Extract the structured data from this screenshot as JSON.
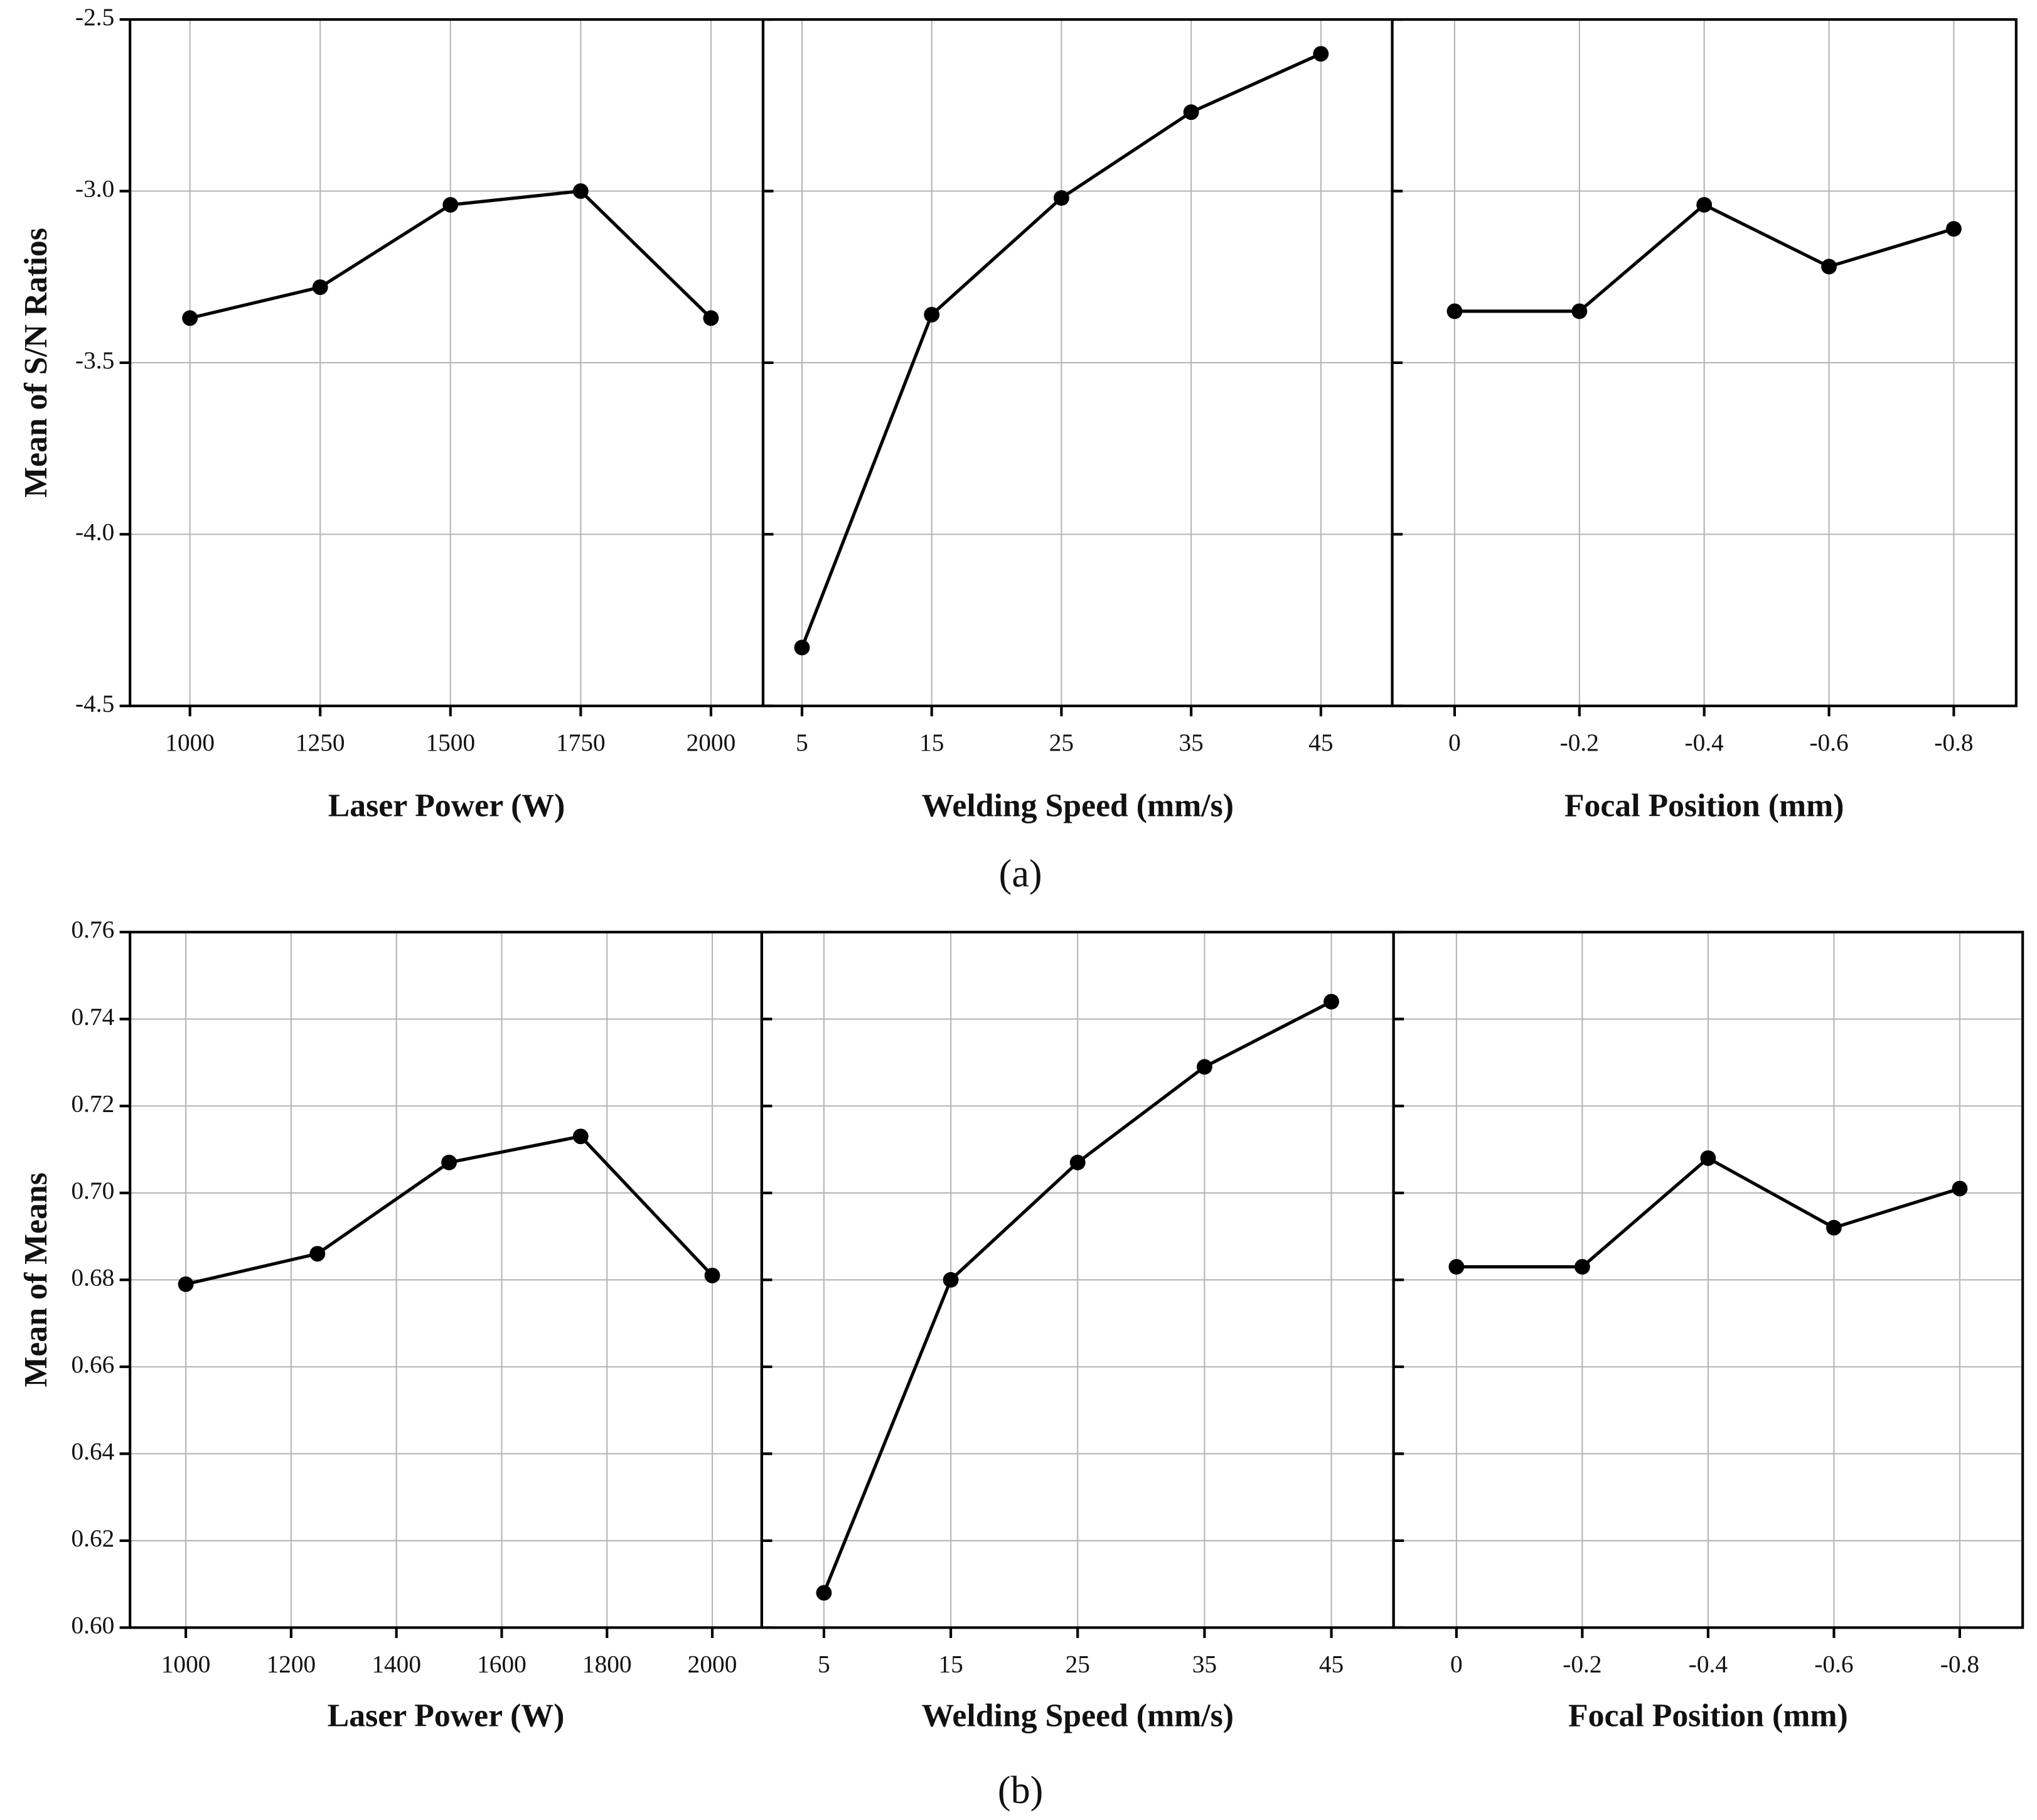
{
  "chart_data": [
    {
      "type": "line",
      "ylabel": "Mean of S/N Ratios",
      "x_label": "Laser Power (W)",
      "x": [
        1000,
        1250,
        1500,
        1750,
        2000
      ],
      "values": [
        -3.37,
        -3.28,
        -3.04,
        -3.0,
        -3.37
      ],
      "xlim": [
        885,
        2100
      ],
      "xticks": [
        1000,
        1250,
        1500,
        1750,
        2000
      ],
      "ylim": [
        -4.5,
        -2.5
      ],
      "yticks": [
        -2.5,
        {
          "value": -3,
          "label": "-3.0"
        },
        -3.5,
        {
          "value": -4,
          "label": "-4.0"
        },
        -4.5
      ],
      "color": "#000000",
      "grid": true
    },
    {
      "type": "line",
      "x_label": "Welding Speed (mm/s)",
      "x": [
        5,
        15,
        25,
        35,
        45
      ],
      "values": [
        -4.33,
        -3.36,
        -3.02,
        -2.77,
        -2.6
      ],
      "xlim": [
        2,
        50.5
      ],
      "xticks": [
        5,
        15,
        25,
        35,
        45
      ],
      "ylim": [
        -4.5,
        -2.5
      ],
      "yticks": [
        -2.5,
        -3,
        -3.5,
        -4,
        -4.5
      ],
      "color": "#000000",
      "grid": true
    },
    {
      "type": "line",
      "x_label": "Focal Position (mm)",
      "x": [
        0,
        -0.2,
        -0.4,
        -0.6,
        -0.8
      ],
      "values": [
        -3.35,
        -3.35,
        -3.04,
        -3.22,
        -3.11
      ],
      "xlim": [
        0.1,
        -0.9
      ],
      "xticks": [
        0,
        -0.2,
        -0.4,
        -0.6,
        -0.8
      ],
      "ylim": [
        -4.5,
        -2.5
      ],
      "yticks": [
        -2.5,
        -3,
        -3.5,
        -4,
        -4.5
      ],
      "color": "#000000",
      "grid": true
    },
    {
      "type": "line",
      "ylabel": "Mean of Means",
      "x_label": "Laser Power (W)",
      "x": [
        1000,
        1250,
        1500,
        1750,
        2000
      ],
      "values": [
        0.679,
        0.686,
        0.707,
        0.713,
        0.681
      ],
      "xlim": [
        894,
        2094
      ],
      "xticks": [
        1000,
        1200,
        1400,
        1600,
        1800,
        2000
      ],
      "ylim": [
        0.6,
        0.76
      ],
      "yticks": [
        {
          "value": 0.6,
          "label": "0.60"
        },
        0.62,
        0.64,
        0.66,
        0.68,
        {
          "value": 0.7,
          "label": "0.70"
        },
        0.72,
        0.74,
        0.76
      ],
      "color": "#000000",
      "grid": true
    },
    {
      "type": "line",
      "x_label": "Welding Speed (mm/s)",
      "x": [
        5,
        15,
        25,
        35,
        45
      ],
      "values": [
        0.608,
        0.68,
        0.707,
        0.729,
        0.744
      ],
      "xlim": [
        0.1,
        49.9
      ],
      "xticks": [
        5,
        15,
        25,
        35,
        45
      ],
      "ylim": [
        0.6,
        0.76
      ],
      "yticks": [
        0.6,
        0.62,
        0.64,
        0.66,
        0.68,
        0.7,
        0.72,
        0.74,
        0.76
      ],
      "color": "#000000",
      "grid": true
    },
    {
      "type": "line",
      "x_label": "Focal Position (mm)",
      "x": [
        0,
        -0.2,
        -0.4,
        -0.6,
        -0.8
      ],
      "values": [
        0.683,
        0.683,
        0.708,
        0.692,
        0.701
      ],
      "xlim": [
        0.1,
        -0.9
      ],
      "xticks": [
        0,
        -0.2,
        -0.4,
        -0.6,
        -0.8
      ],
      "ylim": [
        0.6,
        0.76
      ],
      "yticks": [
        0.6,
        0.62,
        0.64,
        0.66,
        0.68,
        0.7,
        0.72,
        0.74,
        0.76
      ],
      "color": "#000000",
      "grid": true
    }
  ],
  "captions": [
    "(a)",
    "(b)"
  ]
}
